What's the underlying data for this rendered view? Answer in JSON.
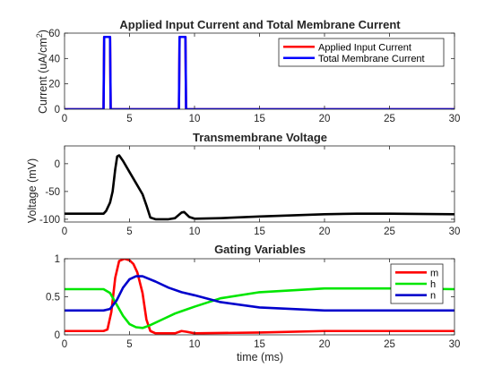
{
  "chart_data": [
    {
      "type": "line",
      "title": "Applied Input Current and Total Membrane Current",
      "xlabel": "",
      "ylabel": "Current (uA/cm",
      "ylabel_sup": "2",
      "ylabel_end": ")",
      "xlim": [
        0,
        30
      ],
      "ylim": [
        0,
        60
      ],
      "xticks": [
        0,
        5,
        10,
        15,
        20,
        25,
        30
      ],
      "yticks": [
        0,
        20,
        40,
        60
      ],
      "legend": "top-right",
      "series": [
        {
          "name": "Applied Input Current",
          "color": "#ff0000",
          "points": [
            [
              0,
              0
            ],
            [
              3.0,
              0
            ],
            [
              3.05,
              57
            ],
            [
              3.5,
              57
            ],
            [
              3.55,
              0
            ],
            [
              8.8,
              0
            ],
            [
              8.85,
              57
            ],
            [
              9.3,
              57
            ],
            [
              9.35,
              0
            ],
            [
              30,
              0
            ]
          ]
        },
        {
          "name": "Total Membrane Current",
          "color": "#0000ff",
          "points": [
            [
              0,
              0
            ],
            [
              3.0,
              0
            ],
            [
              3.05,
              57
            ],
            [
              3.5,
              57
            ],
            [
              3.55,
              0
            ],
            [
              8.8,
              0
            ],
            [
              8.85,
              57
            ],
            [
              9.3,
              57
            ],
            [
              9.35,
              0
            ],
            [
              30,
              0
            ]
          ]
        }
      ]
    },
    {
      "type": "line",
      "title": "Transmembrane Voltage",
      "xlabel": "",
      "ylabel": "Voltage (mV)",
      "xlim": [
        0,
        30
      ],
      "ylim": [
        -105,
        32
      ],
      "xticks": [
        0,
        5,
        10,
        15,
        20,
        25,
        30
      ],
      "yticks": [
        -100,
        -50,
        0
      ],
      "series": [
        {
          "color": "#000000",
          "points": [
            [
              0,
              -90
            ],
            [
              3.0,
              -90
            ],
            [
              3.2,
              -85
            ],
            [
              3.5,
              -70
            ],
            [
              3.7,
              -50
            ],
            [
              3.9,
              -10
            ],
            [
              4.05,
              13
            ],
            [
              4.2,
              15
            ],
            [
              4.5,
              5
            ],
            [
              5.0,
              -15
            ],
            [
              5.5,
              -35
            ],
            [
              6.0,
              -55
            ],
            [
              6.3,
              -75
            ],
            [
              6.6,
              -97
            ],
            [
              7.0,
              -100
            ],
            [
              8.0,
              -100
            ],
            [
              8.5,
              -98
            ],
            [
              9.0,
              -88
            ],
            [
              9.2,
              -87
            ],
            [
              9.6,
              -96
            ],
            [
              10.0,
              -99
            ],
            [
              12,
              -98
            ],
            [
              15,
              -95
            ],
            [
              20,
              -91
            ],
            [
              22.5,
              -90
            ],
            [
              25,
              -90
            ],
            [
              30,
              -91
            ]
          ]
        }
      ]
    },
    {
      "type": "line",
      "title": "Gating Variables",
      "xlabel": "time (ms)",
      "ylabel": "",
      "xlim": [
        0,
        30
      ],
      "ylim": [
        0,
        1
      ],
      "xticks": [
        0,
        5,
        10,
        15,
        20,
        25,
        30
      ],
      "yticks": [
        0,
        0.5,
        1
      ],
      "legend": "top-right",
      "series": [
        {
          "name": "m",
          "color": "#ff0000",
          "points": [
            [
              0,
              0.05
            ],
            [
              3.0,
              0.05
            ],
            [
              3.3,
              0.07
            ],
            [
              3.6,
              0.3
            ],
            [
              3.9,
              0.75
            ],
            [
              4.2,
              0.97
            ],
            [
              4.6,
              1.0
            ],
            [
              5.0,
              0.98
            ],
            [
              5.3,
              0.93
            ],
            [
              5.6,
              0.82
            ],
            [
              6.0,
              0.55
            ],
            [
              6.3,
              0.2
            ],
            [
              6.6,
              0.05
            ],
            [
              7.0,
              0.02
            ],
            [
              8.5,
              0.02
            ],
            [
              9.0,
              0.05
            ],
            [
              9.4,
              0.04
            ],
            [
              10,
              0.02
            ],
            [
              15,
              0.03
            ],
            [
              20,
              0.05
            ],
            [
              25,
              0.05
            ],
            [
              30,
              0.05
            ]
          ]
        },
        {
          "name": "h",
          "color": "#00e600",
          "points": [
            [
              0,
              0.6
            ],
            [
              3.0,
              0.6
            ],
            [
              3.5,
              0.55
            ],
            [
              4.0,
              0.4
            ],
            [
              4.5,
              0.25
            ],
            [
              5.0,
              0.14
            ],
            [
              5.5,
              0.1
            ],
            [
              6.0,
              0.09
            ],
            [
              6.5,
              0.12
            ],
            [
              7.5,
              0.2
            ],
            [
              8.5,
              0.28
            ],
            [
              9.0,
              0.31
            ],
            [
              10,
              0.37
            ],
            [
              12,
              0.48
            ],
            [
              15,
              0.56
            ],
            [
              20,
              0.61
            ],
            [
              25,
              0.61
            ],
            [
              30,
              0.6
            ]
          ]
        },
        {
          "name": "n",
          "color": "#0000cc",
          "points": [
            [
              0,
              0.32
            ],
            [
              3.0,
              0.32
            ],
            [
              3.5,
              0.34
            ],
            [
              4.0,
              0.45
            ],
            [
              4.5,
              0.62
            ],
            [
              5.0,
              0.73
            ],
            [
              5.5,
              0.77
            ],
            [
              6.0,
              0.77
            ],
            [
              7.0,
              0.7
            ],
            [
              8.0,
              0.62
            ],
            [
              9.0,
              0.56
            ],
            [
              10,
              0.52
            ],
            [
              12,
              0.43
            ],
            [
              15,
              0.36
            ],
            [
              20,
              0.32
            ],
            [
              25,
              0.32
            ],
            [
              30,
              0.32
            ]
          ]
        }
      ]
    }
  ]
}
